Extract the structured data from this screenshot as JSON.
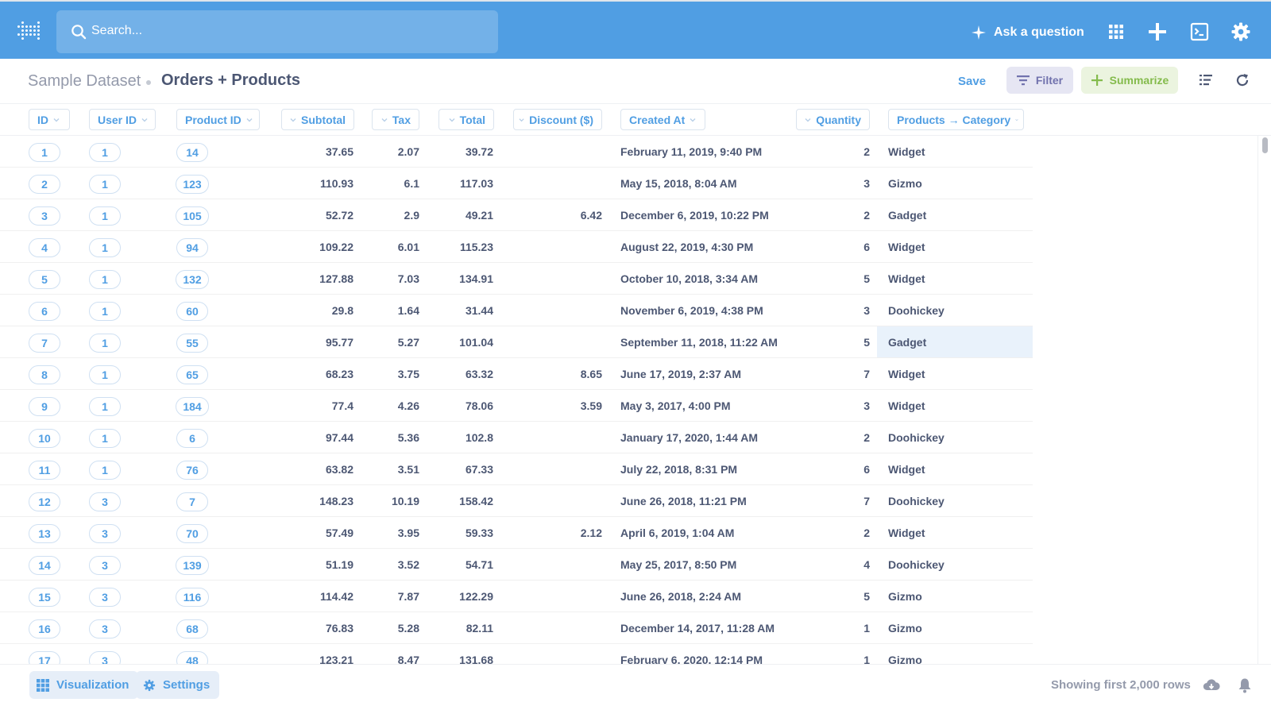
{
  "topnav": {
    "search_placeholder": "Search...",
    "ask_label": "Ask a question",
    "icons": [
      "metabase-logo-icon",
      "search-icon",
      "sparkle-icon",
      "apps-grid-icon",
      "plus-icon",
      "sql-editor-icon",
      "gear-icon"
    ]
  },
  "header": {
    "database": "Sample Dataset",
    "title": "Orders + Products",
    "save_label": "Save",
    "filter_label": "Filter",
    "summarize_label": "Summarize",
    "colors": {
      "brand": "#509ee3",
      "filter": "#7172ad",
      "summarize": "#84bb4c"
    }
  },
  "table": {
    "columns": [
      "ID",
      "User ID",
      "Product ID",
      "Subtotal",
      "Tax",
      "Total",
      "Discount ($)",
      "Created At",
      "Quantity",
      "Products → Category"
    ],
    "rows": [
      [
        "1",
        "1",
        "14",
        "37.65",
        "2.07",
        "39.72",
        "",
        "February 11, 2019, 9:40 PM",
        "2",
        "Widget"
      ],
      [
        "2",
        "1",
        "123",
        "110.93",
        "6.1",
        "117.03",
        "",
        "May 15, 2018, 8:04 AM",
        "3",
        "Gizmo"
      ],
      [
        "3",
        "1",
        "105",
        "52.72",
        "2.9",
        "49.21",
        "6.42",
        "December 6, 2019, 10:22 PM",
        "2",
        "Gadget"
      ],
      [
        "4",
        "1",
        "94",
        "109.22",
        "6.01",
        "115.23",
        "",
        "August 22, 2019, 4:30 PM",
        "6",
        "Widget"
      ],
      [
        "5",
        "1",
        "132",
        "127.88",
        "7.03",
        "134.91",
        "",
        "October 10, 2018, 3:34 AM",
        "5",
        "Widget"
      ],
      [
        "6",
        "1",
        "60",
        "29.8",
        "1.64",
        "31.44",
        "",
        "November 6, 2019, 4:38 PM",
        "3",
        "Doohickey"
      ],
      [
        "7",
        "1",
        "55",
        "95.77",
        "5.27",
        "101.04",
        "",
        "September 11, 2018, 11:22 AM",
        "5",
        "Gadget"
      ],
      [
        "8",
        "1",
        "65",
        "68.23",
        "3.75",
        "63.32",
        "8.65",
        "June 17, 2019, 2:37 AM",
        "7",
        "Widget"
      ],
      [
        "9",
        "1",
        "184",
        "77.4",
        "4.26",
        "78.06",
        "3.59",
        "May 3, 2017, 4:00 PM",
        "3",
        "Widget"
      ],
      [
        "10",
        "1",
        "6",
        "97.44",
        "5.36",
        "102.8",
        "",
        "January 17, 2020, 1:44 AM",
        "2",
        "Doohickey"
      ],
      [
        "11",
        "1",
        "76",
        "63.82",
        "3.51",
        "67.33",
        "",
        "July 22, 2018, 8:31 PM",
        "6",
        "Widget"
      ],
      [
        "12",
        "3",
        "7",
        "148.23",
        "10.19",
        "158.42",
        "",
        "June 26, 2018, 11:21 PM",
        "7",
        "Doohickey"
      ],
      [
        "13",
        "3",
        "70",
        "57.49",
        "3.95",
        "59.33",
        "2.12",
        "April 6, 2019, 1:04 AM",
        "2",
        "Widget"
      ],
      [
        "14",
        "3",
        "139",
        "51.19",
        "3.52",
        "54.71",
        "",
        "May 25, 2017, 8:50 PM",
        "4",
        "Doohickey"
      ],
      [
        "15",
        "3",
        "116",
        "114.42",
        "7.87",
        "122.29",
        "",
        "June 26, 2018, 2:24 AM",
        "5",
        "Gizmo"
      ],
      [
        "16",
        "3",
        "68",
        "76.83",
        "5.28",
        "82.11",
        "",
        "December 14, 2017, 11:28 AM",
        "1",
        "Gizmo"
      ],
      [
        "17",
        "3",
        "48",
        "123.21",
        "8.47",
        "131.68",
        "",
        "February 6, 2020, 12:14 PM",
        "1",
        "Gizmo"
      ]
    ],
    "highlighted_row_index": 6
  },
  "footer": {
    "visualization_label": "Visualization",
    "settings_label": "Settings",
    "row_count_text": "Showing first 2,000 rows"
  }
}
